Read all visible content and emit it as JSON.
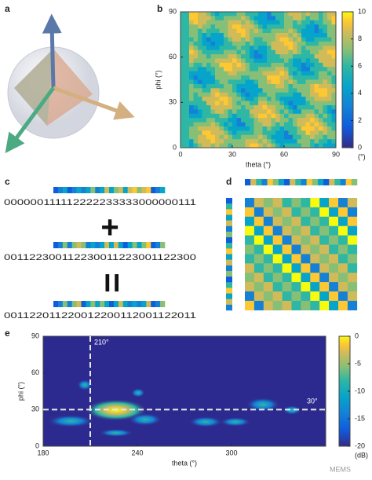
{
  "panels": {
    "a": {
      "label": "a"
    },
    "b": {
      "label": "b",
      "xlabel": "theta (°)",
      "ylabel": "phi (°)",
      "xlim": [
        0,
        90
      ],
      "ylim": [
        0,
        90
      ],
      "xticks": [
        0,
        30,
        60,
        90
      ],
      "yticks": [
        0,
        30,
        60,
        90
      ],
      "colorbar": {
        "lim": [
          0,
          10
        ],
        "ticks": [
          0,
          2,
          4,
          6,
          8,
          10
        ],
        "label": "(°)"
      }
    },
    "c": {
      "label": "c",
      "rows": [
        "000000111112222233333000000111",
        "001122300112230011223001122300",
        "001122011220012200112001122011"
      ],
      "plus": "+",
      "equals": "="
    },
    "d": {
      "label": "d"
    },
    "e": {
      "label": "e",
      "xlabel": "theta (°)",
      "ylabel": "phi (°)",
      "xlim": [
        180,
        360
      ],
      "ylim": [
        0,
        90
      ],
      "xticks": [
        180,
        240,
        300
      ],
      "yticks": [
        0,
        30,
        60,
        90
      ],
      "crosshair_x": {
        "value": 210,
        "label": "210°"
      },
      "crosshair_y": {
        "value": 30,
        "label": "30°"
      },
      "colorbar": {
        "lim": [
          -20,
          0
        ],
        "ticks": [
          0,
          -5,
          -10,
          -15,
          -20
        ],
        "label": "(dB)"
      }
    }
  },
  "watermark": "MEMS"
}
